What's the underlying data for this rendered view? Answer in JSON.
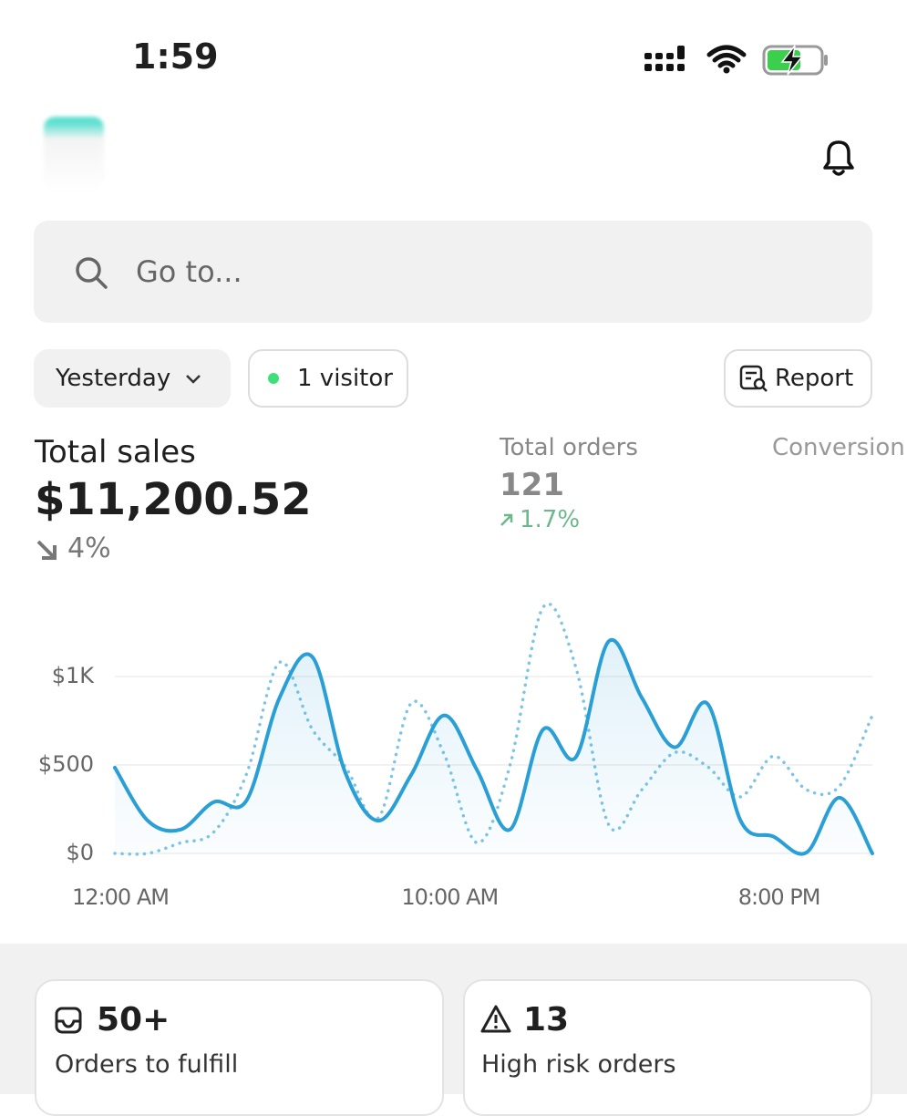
{
  "status_bar": {
    "time": "1:59"
  },
  "search": {
    "placeholder": "Go to..."
  },
  "filters": {
    "date": "Yesterday",
    "visitors": "1 visitor",
    "report": "Report"
  },
  "metrics": [
    {
      "label": "Total sales",
      "value": "$11,200.52",
      "change": "4%"
    },
    {
      "label": "Total orders",
      "value": "121",
      "change": "1.7%"
    },
    {
      "label": "Conversion"
    }
  ],
  "chart_data": {
    "type": "line",
    "x": [
      0,
      1,
      2,
      3,
      4,
      5,
      6,
      7,
      8,
      9,
      10,
      11,
      12,
      13,
      14,
      15,
      16,
      17,
      18,
      19,
      20,
      21,
      22,
      23
    ],
    "xlim": [
      0,
      23
    ],
    "xticks": [
      {
        "value": 0,
        "label": "12:00 AM"
      },
      {
        "value": 10,
        "label": "10:00 AM"
      },
      {
        "value": 20,
        "label": "8:00 PM"
      }
    ],
    "ylim": [
      0,
      1500
    ],
    "yticks": [
      {
        "value": 0,
        "label": "$0"
      },
      {
        "value": 500,
        "label": "$500"
      },
      {
        "value": 1000,
        "label": "$1K"
      }
    ],
    "grid": true,
    "series": [
      {
        "color": "#2a9fd6",
        "line_style": "solid",
        "area": true,
        "values": [
          485,
          185,
          135,
          290,
          300,
          880,
          1110,
          455,
          185,
          445,
          780,
          470,
          135,
          700,
          545,
          1200,
          880,
          600,
          845,
          185,
          95,
          5,
          315,
          0
        ]
      },
      {
        "color": "#7cc4e6",
        "line_style": "dotted",
        "area": false,
        "values": [
          0,
          0,
          60,
          120,
          450,
          1080,
          700,
          490,
          200,
          850,
          560,
          60,
          500,
          1390,
          1050,
          160,
          360,
          570,
          490,
          320,
          550,
          360,
          380,
          780
        ]
      }
    ]
  },
  "cards": [
    {
      "value": "50+",
      "label": "Orders to fulfill"
    },
    {
      "value": "13",
      "label": "High risk orders"
    }
  ]
}
